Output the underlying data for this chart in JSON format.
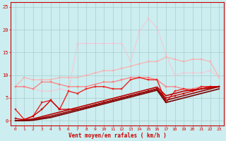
{
  "xlabel": "Vent moyen/en rafales ( km/h )",
  "bg_color": "#cceef0",
  "grid_color": "#aacccc",
  "xlim": [
    -0.5,
    23.5
  ],
  "ylim": [
    -1,
    26
  ],
  "yticks": [
    0,
    5,
    10,
    15,
    20,
    25
  ],
  "xticks": [
    0,
    1,
    2,
    3,
    4,
    5,
    6,
    7,
    8,
    9,
    10,
    11,
    12,
    13,
    14,
    15,
    16,
    17,
    18,
    19,
    20,
    21,
    22,
    23
  ],
  "lines": [
    {
      "x": [
        0,
        1,
        2,
        3,
        4,
        5,
        6,
        7,
        8,
        9,
        10,
        11,
        12,
        13,
        14,
        15,
        16,
        17,
        18,
        19,
        20,
        21,
        22,
        23
      ],
      "y": [
        7.5,
        9.5,
        9.0,
        9.0,
        9.0,
        9.5,
        9.5,
        9.5,
        10.0,
        10.5,
        11.0,
        11.0,
        11.5,
        12.0,
        12.5,
        13.0,
        13.0,
        14.0,
        13.5,
        13.0,
        13.5,
        13.5,
        13.0,
        9.5
      ],
      "color": "#ffaaaa",
      "lw": 1.0,
      "marker": "s",
      "ms": 1.8,
      "alpha": 0.8
    },
    {
      "x": [
        0,
        1,
        2,
        3,
        4,
        5,
        6,
        7,
        8,
        9,
        10,
        11,
        12,
        13,
        14,
        15,
        16,
        17,
        18,
        19,
        20,
        21,
        22,
        23
      ],
      "y": [
        7.5,
        7.5,
        7.0,
        6.5,
        6.5,
        7.0,
        6.5,
        17.0,
        17.0,
        17.0,
        17.0,
        17.0,
        17.0,
        13.0,
        19.5,
        22.5,
        20.5,
        14.5,
        10.0,
        10.5,
        10.5,
        10.5,
        11.0,
        9.5
      ],
      "color": "#ffbbcc",
      "lw": 0.8,
      "marker": "s",
      "ms": 1.8,
      "alpha": 0.7
    },
    {
      "x": [
        0,
        1,
        2,
        3,
        4,
        5,
        6,
        7,
        8,
        9,
        10,
        11,
        12,
        13,
        14,
        15,
        16,
        17,
        18,
        19,
        20,
        21,
        22,
        23
      ],
      "y": [
        7.5,
        7.5,
        7.0,
        8.5,
        8.5,
        8.0,
        7.5,
        7.5,
        7.5,
        8.0,
        8.5,
        8.5,
        9.0,
        9.5,
        9.5,
        9.5,
        9.0,
        7.5,
        7.5,
        7.0,
        7.0,
        7.5,
        7.5,
        7.5
      ],
      "color": "#ff7777",
      "lw": 1.0,
      "marker": "s",
      "ms": 2.0,
      "alpha": 0.85
    },
    {
      "x": [
        0,
        1,
        2,
        3,
        4,
        5,
        6,
        7,
        8,
        9,
        10,
        11,
        12,
        13,
        14,
        15,
        16,
        17,
        18,
        19,
        20,
        21,
        22,
        23
      ],
      "y": [
        2.5,
        0.3,
        1.0,
        4.0,
        4.5,
        2.5,
        6.5,
        6.0,
        7.0,
        7.5,
        7.5,
        7.0,
        7.0,
        9.0,
        9.5,
        9.0,
        9.0,
        4.0,
        6.5,
        7.0,
        6.5,
        7.5,
        7.5,
        7.5
      ],
      "color": "#ee2222",
      "lw": 1.0,
      "marker": "s",
      "ms": 2.0,
      "alpha": 1.0
    },
    {
      "x": [
        0,
        1,
        2,
        3,
        4,
        5,
        6,
        7,
        8,
        9,
        10,
        11,
        12,
        13,
        14,
        15,
        16,
        17,
        18,
        19,
        20,
        21,
        22,
        23
      ],
      "y": [
        0.5,
        0.2,
        1.0,
        2.5,
        4.5,
        2.5,
        2.5,
        2.5,
        3.0,
        3.5,
        4.0,
        4.5,
        5.0,
        5.5,
        6.0,
        6.5,
        7.0,
        5.0,
        5.5,
        6.0,
        6.5,
        7.0,
        7.5,
        7.5
      ],
      "color": "#cc0000",
      "lw": 1.0,
      "marker": "s",
      "ms": 2.0,
      "alpha": 1.0
    },
    {
      "x": [
        0,
        1,
        2,
        3,
        4,
        5,
        6,
        7,
        8,
        9,
        10,
        11,
        12,
        13,
        14,
        15,
        16,
        17,
        18,
        19,
        20,
        21,
        22,
        23
      ],
      "y": [
        0.0,
        0.1,
        0.4,
        0.9,
        1.4,
        1.9,
        2.4,
        2.9,
        3.4,
        3.9,
        4.4,
        4.9,
        5.4,
        5.9,
        6.4,
        6.9,
        7.4,
        5.5,
        6.0,
        6.5,
        6.8,
        7.0,
        7.2,
        7.5
      ],
      "color": "#bb0000",
      "lw": 1.2,
      "marker": null,
      "ms": 0,
      "alpha": 1.0
    },
    {
      "x": [
        0,
        1,
        2,
        3,
        4,
        5,
        6,
        7,
        8,
        9,
        10,
        11,
        12,
        13,
        14,
        15,
        16,
        17,
        18,
        19,
        20,
        21,
        22,
        23
      ],
      "y": [
        0.0,
        0.0,
        0.2,
        0.6,
        1.0,
        1.5,
        2.0,
        2.5,
        3.0,
        3.5,
        4.0,
        4.5,
        5.0,
        5.5,
        6.0,
        6.5,
        7.0,
        4.5,
        5.0,
        5.5,
        6.0,
        6.5,
        7.0,
        7.5
      ],
      "color": "#990000",
      "lw": 1.2,
      "marker": null,
      "ms": 0,
      "alpha": 1.0
    },
    {
      "x": [
        0,
        1,
        2,
        3,
        4,
        5,
        6,
        7,
        8,
        9,
        10,
        11,
        12,
        13,
        14,
        15,
        16,
        17,
        18,
        19,
        20,
        21,
        22,
        23
      ],
      "y": [
        0.0,
        0.0,
        0.1,
        0.4,
        0.7,
        1.2,
        1.7,
        2.2,
        2.7,
        3.2,
        3.7,
        4.2,
        4.7,
        5.2,
        5.7,
        6.2,
        6.7,
        4.0,
        4.5,
        5.0,
        5.5,
        6.0,
        6.5,
        7.0
      ],
      "color": "#770000",
      "lw": 1.2,
      "marker": null,
      "ms": 0,
      "alpha": 1.0
    }
  ]
}
